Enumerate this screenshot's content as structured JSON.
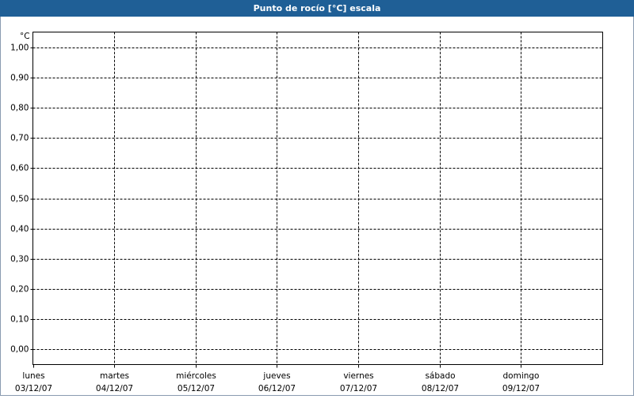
{
  "chart_data": {
    "type": "line",
    "title": "Punto de rocío [°C] escala",
    "y_unit": "°C",
    "categories": [
      "lunes",
      "martes",
      "miércoles",
      "jueves",
      "viernes",
      "sábado",
      "domingo"
    ],
    "category_dates": [
      "03/12/07",
      "04/12/07",
      "05/12/07",
      "06/12/07",
      "07/12/07",
      "08/12/07",
      "09/12/07"
    ],
    "series": [],
    "ylim": [
      -0.05,
      1.05
    ],
    "yticks": [
      {
        "value": 0,
        "label": "0,00"
      },
      {
        "value": 0.1,
        "label": "0,10"
      },
      {
        "value": 0.2,
        "label": "0,20"
      },
      {
        "value": 0.3,
        "label": "0,30"
      },
      {
        "value": 0.4,
        "label": "0,40"
      },
      {
        "value": 0.5,
        "label": "0,50"
      },
      {
        "value": 0.6,
        "label": "0,60"
      },
      {
        "value": 0.7,
        "label": "0,70"
      },
      {
        "value": 0.8,
        "label": "0,80"
      },
      {
        "value": 0.9,
        "label": "0,90"
      },
      {
        "value": 1,
        "label": "1,00"
      }
    ],
    "grid": true
  }
}
